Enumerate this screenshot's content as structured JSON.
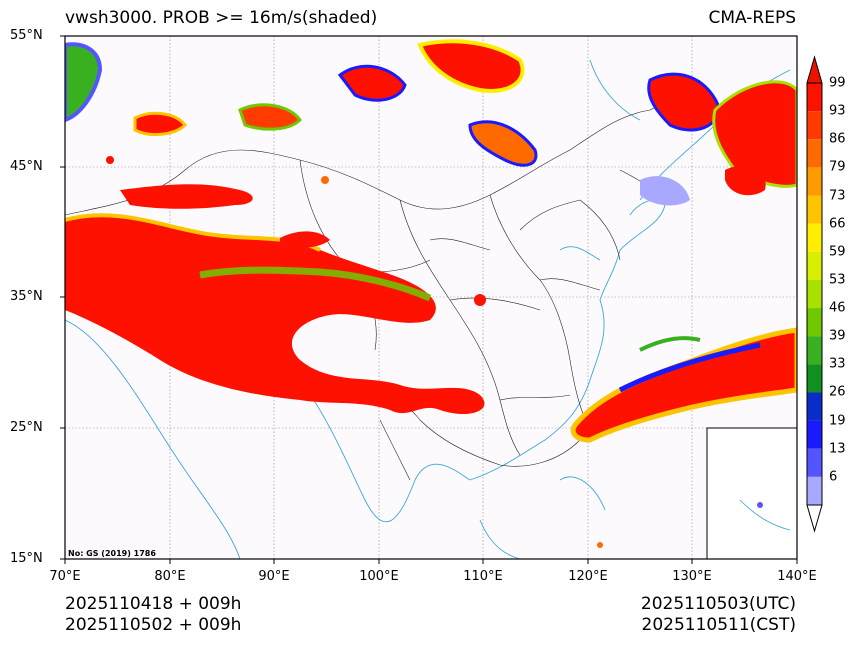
{
  "header": {
    "left_title": "vwsh3000. PROB >= 16m/s(shaded)",
    "right_title": "CMA-REPS"
  },
  "map": {
    "lat_labels": [
      "55°N",
      "45°N",
      "35°N",
      "25°N",
      "15°N"
    ],
    "lon_labels": [
      "70°E",
      "80°E",
      "90°E",
      "100°E",
      "110°E",
      "120°E",
      "130°E",
      "140°E"
    ],
    "extent": {
      "lon_min": 70,
      "lon_max": 140,
      "lat_min": 15,
      "lat_max": 55
    },
    "copyright": "No: GS (2019) 1786"
  },
  "colorbar": {
    "levels": [
      "99",
      "93",
      "86",
      "79",
      "73",
      "66",
      "59",
      "53",
      "46",
      "39",
      "33",
      "26",
      "19",
      "13",
      "6"
    ],
    "colors": [
      "#ff1100",
      "#ff3b00",
      "#ff6a00",
      "#ff9a00",
      "#ffc400",
      "#ffee00",
      "#d8f000",
      "#a8e000",
      "#70c800",
      "#38b020",
      "#109020",
      "#0a2cc8",
      "#1a1aff",
      "#5555ff",
      "#a8a8ff"
    ]
  },
  "footer": {
    "init_utc": "2025110418  +  009h",
    "init_cst": "2025110502  +  009h",
    "valid_utc": "2025110503(UTC)",
    "valid_cst": "2025110511(CST)"
  }
}
